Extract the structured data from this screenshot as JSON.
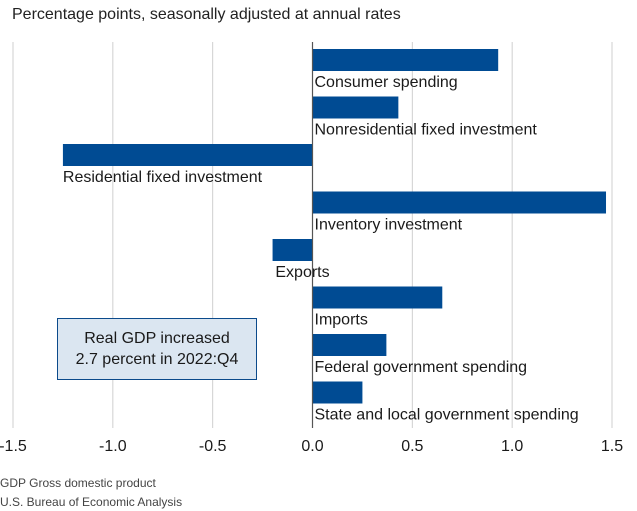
{
  "chart_data": {
    "type": "bar",
    "orientation": "horizontal",
    "subtitle": "Percentage points, seasonally adjusted at annual rates",
    "categories": [
      "Consumer spending",
      "Nonresidential fixed investment",
      "Residential fixed investment",
      "Inventory investment",
      "Exports",
      "Imports",
      "Federal government spending",
      "State and local government spending"
    ],
    "values": [
      0.93,
      0.43,
      -1.25,
      1.47,
      -0.2,
      0.65,
      0.37,
      0.25
    ],
    "xlim": [
      -1.5,
      1.5
    ],
    "xticks": [
      -1.5,
      -1.0,
      -0.5,
      0.0,
      0.5,
      1.0,
      1.5
    ],
    "xtick_labels": [
      "-1.5",
      "-1.0",
      "-0.5",
      "0.0",
      "0.5",
      "1.0",
      "1.5"
    ],
    "grid": "vertical",
    "bar_color": "#004b93",
    "annotation": [
      "Real GDP increased",
      "2.7 percent in 2022:Q4"
    ]
  },
  "footnotes": {
    "definition": "GDP Gross domestic product",
    "source": "U.S. Bureau of Economic Analysis"
  },
  "colors": {
    "bar": "#004b93",
    "grid": "#cfcfcf",
    "callout_bg": "#dbe6f1",
    "callout_border": "#0b4a8b"
  }
}
